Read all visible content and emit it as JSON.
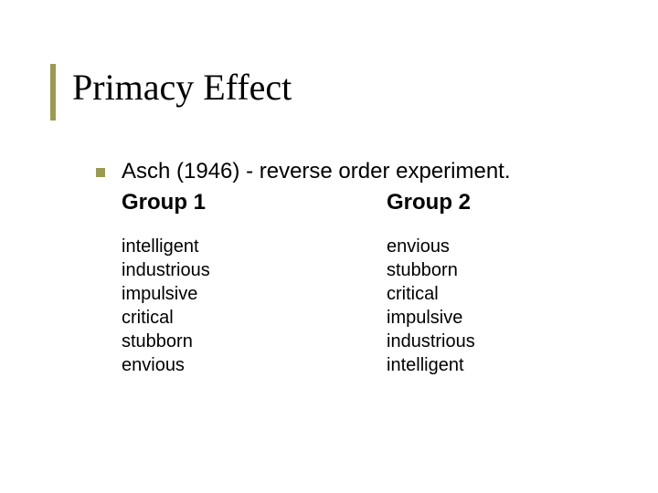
{
  "title": "Primacy Effect",
  "intro": "Asch (1946)  - reverse order experiment.",
  "groups": [
    {
      "label": "Group 1",
      "traits": [
        "intelligent",
        "industrious",
        "impulsive",
        "critical",
        "stubborn",
        "envious"
      ]
    },
    {
      "label": "Group 2",
      "traits": [
        "envious",
        "stubborn",
        "critical",
        "impulsive",
        "industrious",
        "intelligent"
      ]
    }
  ],
  "style": {
    "accent_color": "#9a9a52",
    "background_color": "#ffffff",
    "title_font": "Times New Roman",
    "title_fontsize": 40,
    "body_font": "Verdana",
    "body_fontsize": 24,
    "trait_fontsize": 20,
    "bullet_size": 10,
    "title_bar_width": 6
  }
}
